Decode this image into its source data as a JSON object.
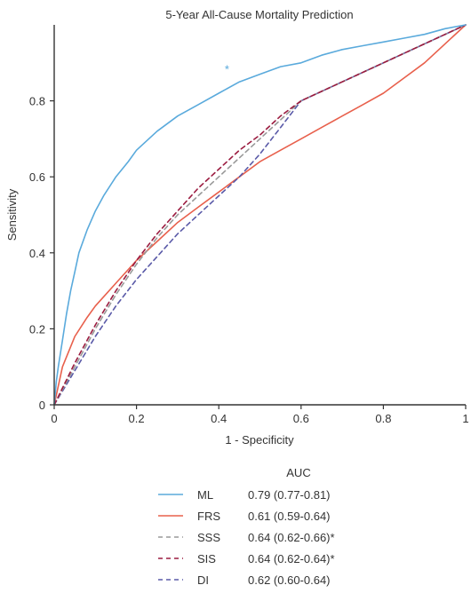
{
  "chart_data": {
    "type": "line",
    "title": "5-Year All-Cause Mortality Prediction",
    "xlabel": "1 - Specificity",
    "ylabel": "Sensitivity",
    "xlim": [
      0,
      1
    ],
    "ylim": [
      0,
      1
    ],
    "xticks": [
      "0",
      "0.2",
      "0.4",
      "0.6",
      "0.8",
      "1"
    ],
    "yticks": [
      "0",
      "0.2",
      "0.4",
      "0.6",
      "0.8"
    ],
    "grid": false,
    "legend_title": "AUC",
    "legend_position": "bottom",
    "annotation": {
      "text": "*",
      "x": 0.42,
      "y": 0.873,
      "color": "#5aaadc"
    },
    "series": [
      {
        "name": "ML",
        "auc": "0.79 (0.77-0.81)",
        "color": "#5aaadc",
        "dash": "solid",
        "x": [
          0,
          0.005,
          0.01,
          0.02,
          0.03,
          0.04,
          0.05,
          0.06,
          0.08,
          0.1,
          0.12,
          0.15,
          0.18,
          0.2,
          0.25,
          0.3,
          0.35,
          0.4,
          0.45,
          0.5,
          0.55,
          0.6,
          0.65,
          0.7,
          0.75,
          0.8,
          0.85,
          0.9,
          0.95,
          1
        ],
        "y": [
          0,
          0.06,
          0.1,
          0.17,
          0.24,
          0.3,
          0.35,
          0.4,
          0.46,
          0.51,
          0.55,
          0.6,
          0.64,
          0.67,
          0.72,
          0.76,
          0.79,
          0.82,
          0.85,
          0.87,
          0.89,
          0.9,
          0.92,
          0.935,
          0.945,
          0.955,
          0.965,
          0.975,
          0.99,
          1
        ]
      },
      {
        "name": "FRS",
        "auc": "0.61 (0.59-0.64)",
        "color": "#e8604c",
        "dash": "solid",
        "x": [
          0,
          0.02,
          0.05,
          0.08,
          0.1,
          0.15,
          0.2,
          0.25,
          0.3,
          0.35,
          0.4,
          0.45,
          0.5,
          0.55,
          0.6,
          0.65,
          0.7,
          0.75,
          0.8,
          0.85,
          0.9,
          0.95,
          1
        ],
        "y": [
          0,
          0.1,
          0.18,
          0.23,
          0.26,
          0.32,
          0.38,
          0.43,
          0.48,
          0.52,
          0.56,
          0.6,
          0.64,
          0.67,
          0.7,
          0.73,
          0.76,
          0.79,
          0.82,
          0.86,
          0.9,
          0.95,
          1
        ]
      },
      {
        "name": "SSS",
        "auc": "0.64 (0.62-0.66)*",
        "color": "#999999",
        "dash": "dashed",
        "x": [
          0,
          0.05,
          0.1,
          0.15,
          0.2,
          0.25,
          0.3,
          0.35,
          0.4,
          0.45,
          0.5,
          0.55,
          0.6,
          0.7,
          0.8,
          0.9,
          1
        ],
        "y": [
          0,
          0.1,
          0.2,
          0.29,
          0.37,
          0.44,
          0.5,
          0.55,
          0.6,
          0.65,
          0.7,
          0.75,
          0.8,
          0.85,
          0.9,
          0.95,
          1
        ]
      },
      {
        "name": "SIS",
        "auc": "0.64 (0.62-0.64)*",
        "color": "#9b1c40",
        "dash": "dashed",
        "x": [
          0,
          0.05,
          0.1,
          0.15,
          0.2,
          0.25,
          0.3,
          0.35,
          0.4,
          0.45,
          0.5,
          0.55,
          0.6,
          0.7,
          0.8,
          0.9,
          1
        ],
        "y": [
          0,
          0.11,
          0.21,
          0.3,
          0.38,
          0.45,
          0.51,
          0.57,
          0.62,
          0.67,
          0.71,
          0.76,
          0.8,
          0.85,
          0.9,
          0.95,
          1
        ]
      },
      {
        "name": "DI",
        "auc": "0.62 (0.60-0.64)",
        "color": "#5a5aa8",
        "dash": "dashed",
        "x": [
          0,
          0.05,
          0.1,
          0.15,
          0.2,
          0.25,
          0.3,
          0.35,
          0.4,
          0.45,
          0.5,
          0.55,
          0.6,
          0.7,
          0.8,
          0.9,
          1
        ],
        "y": [
          0,
          0.09,
          0.18,
          0.26,
          0.33,
          0.39,
          0.45,
          0.5,
          0.55,
          0.6,
          0.66,
          0.73,
          0.8,
          0.85,
          0.9,
          0.95,
          1
        ]
      }
    ]
  }
}
